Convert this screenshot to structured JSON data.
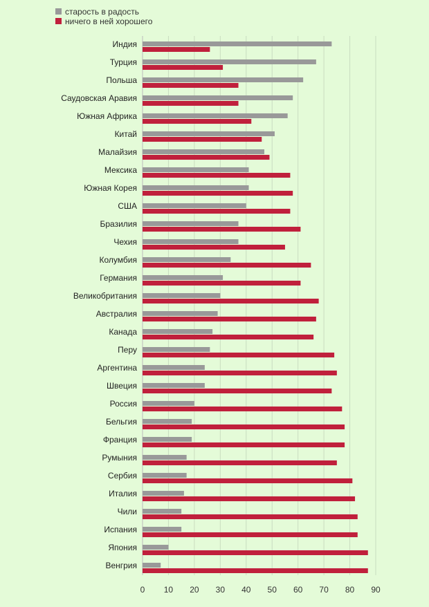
{
  "colors": {
    "background": "#e4fbd8",
    "gray_series": "#999999",
    "red_series": "#c0203c",
    "grid": "#c9dcc0"
  },
  "chart_data": {
    "type": "bar",
    "orientation": "horizontal",
    "legend_position": "top-left",
    "grid": true,
    "xlim": [
      0,
      90
    ],
    "xticks": [
      0,
      10,
      20,
      30,
      40,
      50,
      60,
      70,
      80,
      90
    ],
    "categories": [
      "Индия",
      "Турция",
      "Польша",
      "Саудовская Аравия",
      "Южная Африка",
      "Китай",
      "Малайзия",
      "Мексика",
      "Южная Корея",
      "США",
      "Бразилия",
      "Чехия",
      "Колумбия",
      "Германия",
      "Великобритания",
      "Австралия",
      "Канада",
      "Перу",
      "Аргентина",
      "Швеция",
      "Россия",
      "Бельгия",
      "Франция",
      "Румыния",
      "Сербия",
      "Италия",
      "Чили",
      "Испания",
      "Япония",
      "Венгрия"
    ],
    "series": [
      {
        "name": "старость в радость",
        "color": "#999999",
        "values": [
          73,
          67,
          62,
          58,
          56,
          51,
          47,
          41,
          41,
          40,
          37,
          37,
          34,
          31,
          30,
          29,
          27,
          26,
          24,
          24,
          20,
          19,
          19,
          17,
          17,
          16,
          15,
          15,
          10,
          7
        ]
      },
      {
        "name": "ничего в ней хорошего",
        "color": "#c0203c",
        "values": [
          26,
          31,
          37,
          37,
          42,
          46,
          49,
          57,
          58,
          57,
          61,
          55,
          65,
          61,
          68,
          67,
          66,
          74,
          75,
          73,
          77,
          78,
          78,
          75,
          81,
          82,
          83,
          83,
          87,
          87
        ]
      }
    ]
  }
}
